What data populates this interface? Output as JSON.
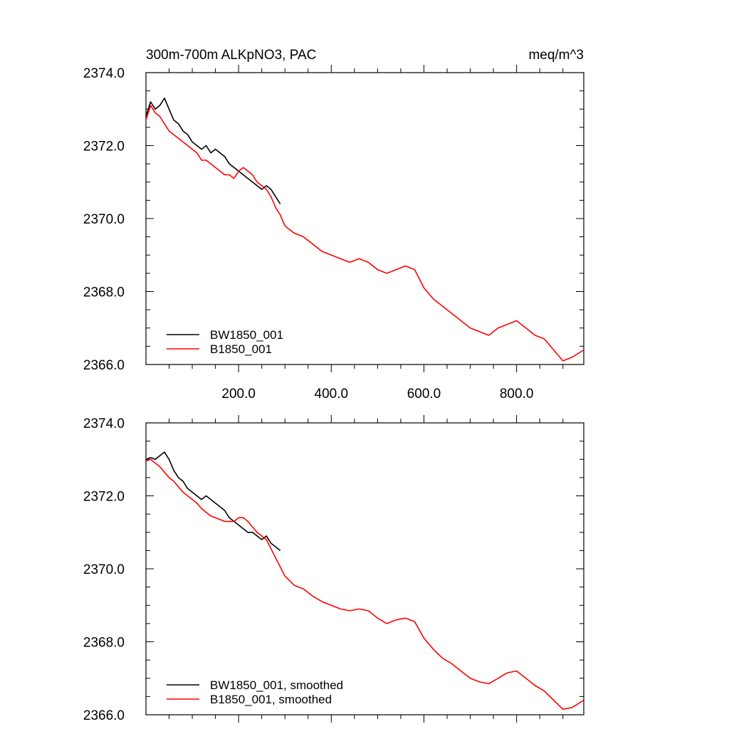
{
  "title_left": "300m-700m ALKpNO3, PAC",
  "title_right": "meq/m^3",
  "colors": {
    "bw": "#000000",
    "b": "#ff0000"
  },
  "chart_data": [
    {
      "type": "line",
      "panel": "top",
      "xlim": [
        0,
        945
      ],
      "ylim": [
        2366.0,
        2374.0
      ],
      "xticks": [
        200,
        400,
        600,
        800
      ],
      "xtick_labels": [
        "200.0",
        "400.0",
        "600.0",
        "800.0"
      ],
      "yticks": [
        2366,
        2368,
        2370,
        2372,
        2374
      ],
      "ytick_labels": [
        "2366.0",
        "2368.0",
        "2370.0",
        "2372.0",
        "2374.0"
      ],
      "legend_position": "bottom-left",
      "series": [
        {
          "name": "BW1850_001",
          "color": "#000000",
          "x": [
            0,
            10,
            20,
            30,
            40,
            50,
            60,
            70,
            80,
            90,
            100,
            110,
            120,
            130,
            140,
            150,
            160,
            170,
            180,
            190,
            200,
            210,
            220,
            230,
            240,
            250,
            260,
            270,
            280,
            290
          ],
          "y": [
            2372.8,
            2373.2,
            2373.0,
            2373.1,
            2373.3,
            2373.0,
            2372.7,
            2372.6,
            2372.4,
            2372.3,
            2372.1,
            2372.0,
            2371.9,
            2372.0,
            2371.8,
            2371.9,
            2371.8,
            2371.7,
            2371.5,
            2371.4,
            2371.3,
            2371.2,
            2371.1,
            2371.0,
            2370.9,
            2370.8,
            2370.9,
            2370.8,
            2370.6,
            2370.4
          ]
        },
        {
          "name": "B1850_001",
          "color": "#ff0000",
          "x": [
            0,
            10,
            20,
            30,
            40,
            50,
            60,
            70,
            80,
            90,
            100,
            110,
            120,
            130,
            140,
            150,
            160,
            170,
            180,
            190,
            200,
            210,
            220,
            230,
            240,
            250,
            260,
            270,
            280,
            290,
            300,
            320,
            340,
            360,
            380,
            400,
            420,
            440,
            460,
            480,
            500,
            520,
            540,
            560,
            580,
            600,
            620,
            640,
            660,
            680,
            700,
            720,
            740,
            760,
            780,
            800,
            820,
            840,
            860,
            880,
            900,
            920,
            945
          ],
          "y": [
            2372.7,
            2373.1,
            2372.9,
            2372.8,
            2372.6,
            2372.4,
            2372.3,
            2372.2,
            2372.1,
            2372.0,
            2371.9,
            2371.8,
            2371.6,
            2371.6,
            2371.5,
            2371.4,
            2371.3,
            2371.2,
            2371.2,
            2371.1,
            2371.3,
            2371.4,
            2371.3,
            2371.2,
            2371.0,
            2370.9,
            2370.8,
            2370.6,
            2370.3,
            2370.1,
            2369.8,
            2369.6,
            2369.5,
            2369.3,
            2369.1,
            2369.0,
            2368.9,
            2368.8,
            2368.9,
            2368.8,
            2368.6,
            2368.5,
            2368.6,
            2368.7,
            2368.6,
            2368.1,
            2367.8,
            2367.6,
            2367.4,
            2367.2,
            2367.0,
            2366.9,
            2366.8,
            2367.0,
            2367.1,
            2367.2,
            2367.0,
            2366.8,
            2366.7,
            2366.4,
            2366.1,
            2366.2,
            2366.4
          ]
        }
      ]
    },
    {
      "type": "line",
      "panel": "bottom",
      "xlim": [
        0,
        945
      ],
      "ylim": [
        2366.0,
        2374.0
      ],
      "yticks": [
        2366,
        2368,
        2370,
        2372,
        2374
      ],
      "ytick_labels": [
        "2366.0",
        "2368.0",
        "2370.0",
        "2372.0",
        "2374.0"
      ],
      "legend_position": "bottom-left",
      "series": [
        {
          "name": "BW1850_001, smoothed",
          "color": "#000000",
          "x": [
            0,
            10,
            20,
            30,
            40,
            50,
            60,
            70,
            80,
            90,
            100,
            110,
            120,
            130,
            140,
            150,
            160,
            170,
            180,
            190,
            200,
            210,
            220,
            230,
            240,
            250,
            260,
            270,
            280,
            290
          ],
          "y": [
            2373.0,
            2373.05,
            2373.0,
            2373.1,
            2373.2,
            2373.0,
            2372.7,
            2372.5,
            2372.4,
            2372.2,
            2372.1,
            2372.0,
            2371.9,
            2372.0,
            2371.9,
            2371.8,
            2371.7,
            2371.6,
            2371.4,
            2371.3,
            2371.2,
            2371.1,
            2371.0,
            2371.0,
            2370.9,
            2370.8,
            2370.9,
            2370.7,
            2370.6,
            2370.5
          ]
        },
        {
          "name": "B1850_001, smoothed",
          "color": "#ff0000",
          "x": [
            0,
            10,
            20,
            30,
            40,
            50,
            60,
            70,
            80,
            90,
            100,
            110,
            120,
            130,
            140,
            150,
            160,
            170,
            180,
            190,
            200,
            210,
            220,
            230,
            240,
            250,
            260,
            270,
            280,
            290,
            300,
            320,
            340,
            360,
            380,
            400,
            420,
            440,
            460,
            480,
            500,
            520,
            540,
            560,
            580,
            600,
            620,
            640,
            660,
            680,
            700,
            720,
            740,
            760,
            780,
            800,
            820,
            840,
            860,
            880,
            900,
            920,
            945
          ],
          "y": [
            2372.95,
            2373.0,
            2372.9,
            2372.8,
            2372.65,
            2372.5,
            2372.4,
            2372.25,
            2372.1,
            2372.0,
            2371.9,
            2371.8,
            2371.65,
            2371.55,
            2371.45,
            2371.4,
            2371.35,
            2371.3,
            2371.3,
            2371.3,
            2371.4,
            2371.4,
            2371.3,
            2371.15,
            2371.0,
            2370.9,
            2370.8,
            2370.55,
            2370.3,
            2370.05,
            2369.8,
            2369.55,
            2369.45,
            2369.25,
            2369.1,
            2369.0,
            2368.9,
            2368.85,
            2368.9,
            2368.85,
            2368.65,
            2368.5,
            2368.6,
            2368.65,
            2368.55,
            2368.1,
            2367.8,
            2367.55,
            2367.4,
            2367.2,
            2367.0,
            2366.9,
            2366.85,
            2367.0,
            2367.15,
            2367.2,
            2367.0,
            2366.8,
            2366.65,
            2366.4,
            2366.15,
            2366.2,
            2366.4
          ]
        }
      ]
    }
  ]
}
